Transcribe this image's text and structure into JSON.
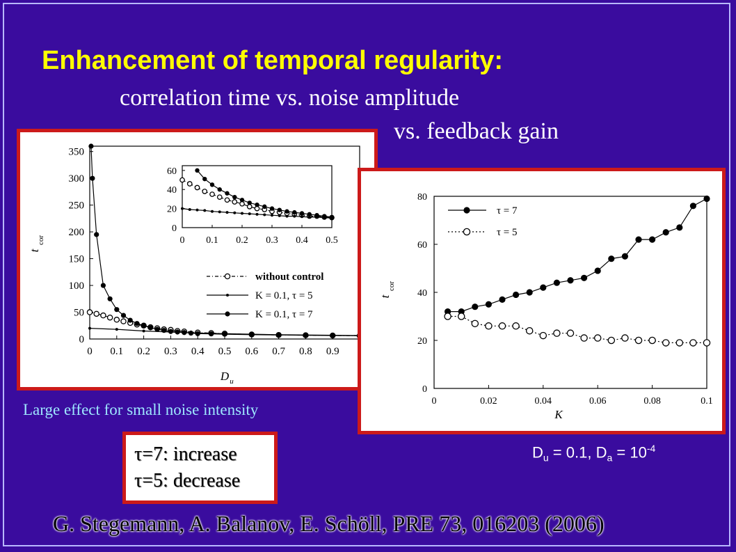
{
  "slide": {
    "title": "Enhancement of temporal regularity:",
    "subtitle_line1": "correlation time vs. noise amplitude",
    "subtitle_line2": "vs. feedback gain",
    "note": "Large effect for small noise intensity",
    "tau_lines": [
      "τ=7: increase",
      "τ=5: decrease"
    ],
    "params": {
      "du_label": "D",
      "du_sub": "u",
      "du_value": " = 0.1, D",
      "da_sub": "a",
      "da_value": " = 10",
      "da_exp": "-4"
    },
    "reference": "G. Stegemann, A. Balanov, E. Schöll, PRE 73, 016203 (2006)"
  },
  "colors": {
    "background": "#3a0c9e",
    "title": "#ffff00",
    "note": "#9ee7ff",
    "panel_border": "#cc1a1a"
  },
  "chart_data": [
    {
      "type": "line",
      "xlabel": "D_u",
      "ylabel": "t_cor",
      "xlim": [
        0,
        1
      ],
      "ylim": [
        0,
        360
      ],
      "xticks": [
        "0",
        "0.1",
        "0.2",
        "0.3",
        "0.4",
        "0.5",
        "0.6",
        "0.7",
        "0.8",
        "0.9",
        "1"
      ],
      "yticks": [
        "0",
        "50",
        "100",
        "150",
        "200",
        "250",
        "300",
        "350"
      ],
      "legend_position": "right-middle",
      "series": [
        {
          "name": "without control",
          "marker": "open-circle",
          "style": "dash-dot",
          "x": [
            0,
            0.025,
            0.05,
            0.075,
            0.1,
            0.125,
            0.15,
            0.175,
            0.2,
            0.225,
            0.25,
            0.275,
            0.3,
            0.325,
            0.35,
            0.4,
            0.45,
            0.5,
            0.6,
            0.7,
            0.8,
            0.9,
            1.0
          ],
          "y": [
            50,
            47,
            44,
            40,
            36,
            33,
            30,
            27,
            25,
            22,
            20,
            18,
            17,
            15,
            14,
            12,
            11,
            10,
            8.5,
            7.5,
            7,
            6.5,
            6
          ]
        },
        {
          "name": "K = 0.1, τ = 5",
          "marker": "small-dot",
          "style": "solid",
          "x": [
            0,
            0.1,
            0.2,
            0.3,
            0.4,
            0.5,
            0.6,
            0.7,
            0.8,
            0.9,
            1.0
          ],
          "y": [
            20,
            18,
            15,
            13,
            11,
            10,
            9,
            8,
            7.5,
            7,
            6.5
          ]
        },
        {
          "name": "K = 0.1, τ = 7",
          "marker": "filled-circle",
          "style": "solid",
          "x": [
            0.005,
            0.01,
            0.025,
            0.05,
            0.075,
            0.1,
            0.125,
            0.15,
            0.175,
            0.2,
            0.225,
            0.25,
            0.275,
            0.3,
            0.325,
            0.35,
            0.375,
            0.4,
            0.45,
            0.5,
            0.6,
            0.7,
            0.8,
            0.9,
            1.0
          ],
          "y": [
            360,
            300,
            195,
            100,
            75,
            55,
            44,
            35,
            29,
            25,
            21,
            18,
            16,
            14,
            13,
            12,
            11,
            10,
            9.5,
            9,
            8,
            7.5,
            7,
            6.5,
            6
          ]
        }
      ],
      "inset": {
        "xlim": [
          0,
          0.5
        ],
        "ylim": [
          0,
          65
        ],
        "xticks": [
          "0",
          "0.1",
          "0.2",
          "0.3",
          "0.4",
          "0.5"
        ],
        "yticks": [
          "0",
          "20",
          "40",
          "60"
        ],
        "x": [
          0,
          0.025,
          0.05,
          0.075,
          0.1,
          0.125,
          0.15,
          0.175,
          0.2,
          0.225,
          0.25,
          0.275,
          0.3,
          0.325,
          0.35,
          0.375,
          0.4,
          0.425,
          0.45,
          0.475,
          0.5
        ],
        "series": [
          {
            "name": "without control",
            "y": [
              50,
              46,
              42,
              38,
              35,
              32,
              29,
              27,
              25,
              22,
              20,
              19,
              17,
              16,
              15,
              14,
              13,
              12,
              12,
              11,
              10.5
            ]
          },
          {
            "name": "K = 0.1, τ = 5",
            "y": [
              20,
              19,
              18.5,
              18,
              17,
              16.5,
              16,
              15.5,
              15,
              14.5,
              14,
              13.5,
              13,
              12.5,
              12,
              12,
              11.5,
              11,
              11,
              10.5,
              10
            ]
          },
          {
            "name": "K = 0.1, τ = 7",
            "y": [
              null,
              null,
              60,
              51,
              45,
              40,
              36,
              32,
              29,
              26,
              24,
              22,
              20,
              18.5,
              17,
              16,
              15,
              14,
              13,
              12,
              11
            ]
          }
        ]
      }
    },
    {
      "type": "line",
      "xlabel": "K",
      "ylabel": "t_cor",
      "xlim": [
        0,
        0.1
      ],
      "ylim": [
        0,
        80
      ],
      "xticks": [
        "0",
        "0.02",
        "0.04",
        "0.06",
        "0.08",
        "0.1"
      ],
      "yticks": [
        "0",
        "20",
        "40",
        "60",
        "80"
      ],
      "legend_position": "top-left",
      "x": [
        0.005,
        0.01,
        0.015,
        0.02,
        0.025,
        0.03,
        0.035,
        0.04,
        0.045,
        0.05,
        0.055,
        0.06,
        0.065,
        0.07,
        0.075,
        0.08,
        0.085,
        0.09,
        0.095,
        0.1
      ],
      "series": [
        {
          "name": "τ = 7",
          "marker": "filled-circle",
          "y": [
            32,
            32,
            34,
            35,
            37,
            39,
            40,
            42,
            44,
            45,
            46,
            49,
            54,
            55,
            62,
            62,
            65,
            67,
            76,
            79
          ]
        },
        {
          "name": "τ = 5",
          "marker": "open-circle",
          "y": [
            30,
            30,
            27,
            26,
            26,
            26,
            24,
            22,
            23,
            23,
            21,
            21,
            20,
            21,
            20,
            20,
            19,
            19,
            19,
            19
          ]
        }
      ]
    }
  ]
}
